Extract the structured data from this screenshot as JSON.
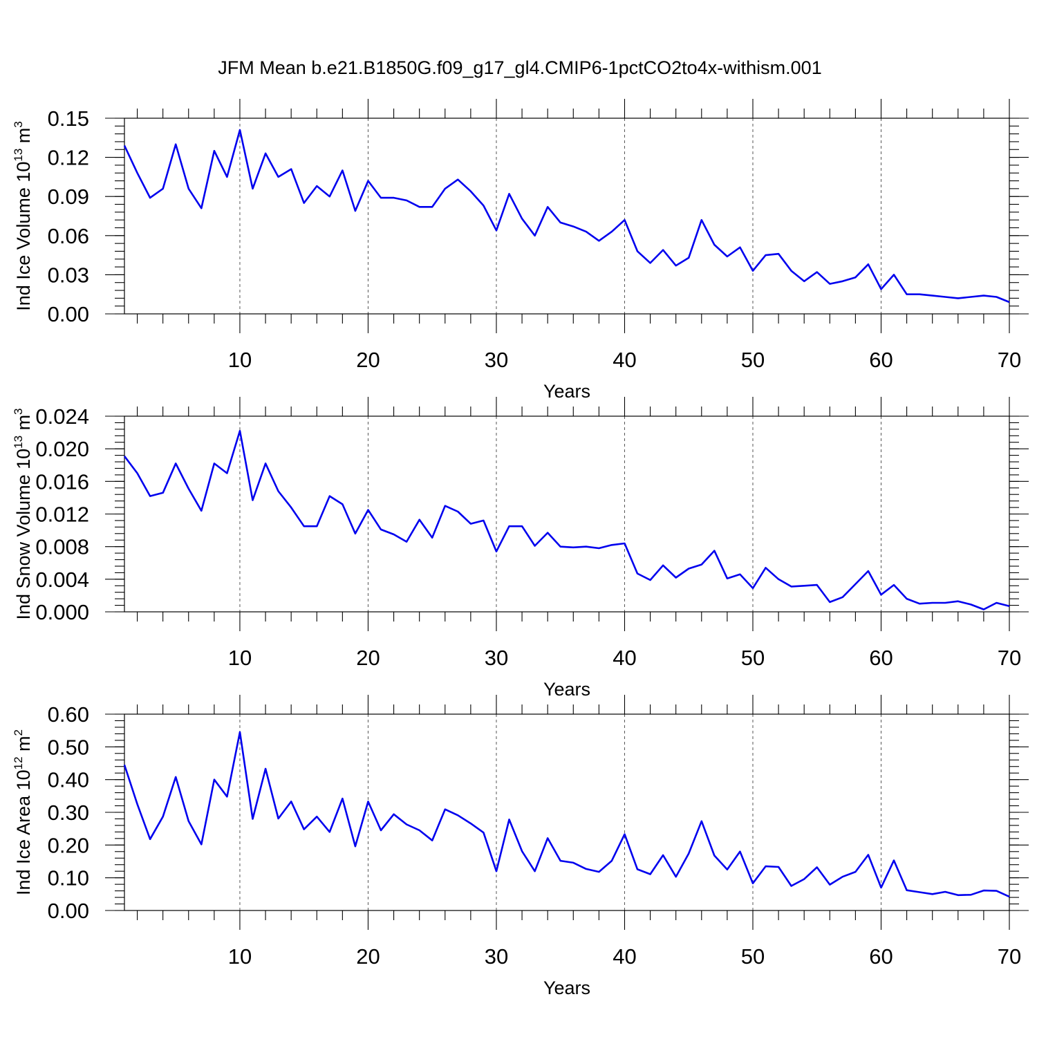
{
  "chart_data": [
    {
      "type": "line",
      "title": "JFM Mean b.e21.B1850G.f09_g17_gl4.CMIP6-1pctCO2to4x-withism.001",
      "ylabel": "Ind Ice Volume 10",
      "ylabel_exp": "13",
      "ylabel_unit": " m",
      "ylabel_unit_exp": "3",
      "xlabel": "Years",
      "xlim": [
        1,
        70
      ],
      "ylim": [
        0,
        0.15
      ],
      "xticks": [
        10,
        20,
        30,
        40,
        50,
        60,
        70
      ],
      "xtick_labels": [
        "10",
        "20",
        "30",
        "40",
        "50",
        "60",
        "70"
      ],
      "yticks": [
        0,
        0.03,
        0.06,
        0.09,
        0.12,
        0.15
      ],
      "ytick_labels": [
        "0.00",
        "0.03",
        "0.06",
        "0.09",
        "0.12",
        "0.15"
      ],
      "grid": "vertical dashed at major x ticks",
      "series": [
        {
          "name": "Ind Ice Volume",
          "color": "#0000ee",
          "x": [
            1,
            2,
            3,
            4,
            5,
            6,
            7,
            8,
            9,
            10,
            11,
            12,
            13,
            14,
            15,
            16,
            17,
            18,
            19,
            20,
            21,
            22,
            23,
            24,
            25,
            26,
            27,
            28,
            29,
            30,
            31,
            32,
            33,
            34,
            35,
            36,
            37,
            38,
            39,
            40,
            41,
            42,
            43,
            44,
            45,
            46,
            47,
            48,
            49,
            50,
            51,
            52,
            53,
            54,
            55,
            56,
            57,
            58,
            59,
            60,
            61,
            62,
            63,
            64,
            65,
            66,
            67,
            68,
            69,
            70
          ],
          "values": [
            0.129,
            0.108,
            0.089,
            0.096,
            0.13,
            0.096,
            0.081,
            0.125,
            0.105,
            0.141,
            0.096,
            0.123,
            0.105,
            0.111,
            0.085,
            0.098,
            0.09,
            0.11,
            0.079,
            0.102,
            0.089,
            0.089,
            0.087,
            0.082,
            0.082,
            0.096,
            0.103,
            0.094,
            0.083,
            0.064,
            0.092,
            0.073,
            0.06,
            0.082,
            0.07,
            0.067,
            0.063,
            0.056,
            0.063,
            0.072,
            0.048,
            0.039,
            0.049,
            0.037,
            0.043,
            0.072,
            0.053,
            0.044,
            0.051,
            0.033,
            0.045,
            0.046,
            0.033,
            0.025,
            0.032,
            0.023,
            0.025,
            0.028,
            0.038,
            0.019,
            0.03,
            0.015,
            0.015,
            0.014,
            0.013,
            0.012,
            0.013,
            0.014,
            0.013,
            0.009
          ]
        }
      ]
    },
    {
      "type": "line",
      "ylabel": "Ind Snow Volume 10",
      "ylabel_exp": "13",
      "ylabel_unit": " m",
      "ylabel_unit_exp": "3",
      "xlabel": "Years",
      "xlim": [
        1,
        70
      ],
      "ylim": [
        0,
        0.024
      ],
      "xticks": [
        10,
        20,
        30,
        40,
        50,
        60,
        70
      ],
      "xtick_labels": [
        "10",
        "20",
        "30",
        "40",
        "50",
        "60",
        "70"
      ],
      "yticks": [
        0,
        0.004,
        0.008,
        0.012,
        0.016,
        0.02,
        0.024
      ],
      "ytick_labels": [
        "0.000",
        "0.004",
        "0.008",
        "0.012",
        "0.016",
        "0.020",
        "0.024"
      ],
      "grid": "vertical dashed at major x ticks",
      "series": [
        {
          "name": "Ind Snow Volume",
          "color": "#0000ee",
          "x": [
            1,
            2,
            3,
            4,
            5,
            6,
            7,
            8,
            9,
            10,
            11,
            12,
            13,
            14,
            15,
            16,
            17,
            18,
            19,
            20,
            21,
            22,
            23,
            24,
            25,
            26,
            27,
            28,
            29,
            30,
            31,
            32,
            33,
            34,
            35,
            36,
            37,
            38,
            39,
            40,
            41,
            42,
            43,
            44,
            45,
            46,
            47,
            48,
            49,
            50,
            51,
            52,
            53,
            54,
            55,
            56,
            57,
            58,
            59,
            60,
            61,
            62,
            63,
            64,
            65,
            66,
            67,
            68,
            69,
            70
          ],
          "values": [
            0.0191,
            0.017,
            0.0142,
            0.0146,
            0.0182,
            0.0151,
            0.0124,
            0.0182,
            0.017,
            0.0222,
            0.0137,
            0.0182,
            0.0148,
            0.0128,
            0.0105,
            0.0105,
            0.0142,
            0.0132,
            0.0096,
            0.0125,
            0.0101,
            0.0095,
            0.0086,
            0.0113,
            0.0091,
            0.013,
            0.0123,
            0.0108,
            0.0112,
            0.0074,
            0.0105,
            0.0105,
            0.0081,
            0.0097,
            0.008,
            0.0079,
            0.008,
            0.0078,
            0.0082,
            0.0084,
            0.0047,
            0.0039,
            0.0057,
            0.0042,
            0.0053,
            0.0058,
            0.0075,
            0.0041,
            0.0046,
            0.0029,
            0.0054,
            0.004,
            0.0031,
            0.0032,
            0.0033,
            0.0012,
            0.0018,
            0.0034,
            0.005,
            0.0021,
            0.0033,
            0.0016,
            0.001,
            0.0011,
            0.0011,
            0.0013,
            0.0009,
            0.0003,
            0.0011,
            0.0007
          ]
        }
      ]
    },
    {
      "type": "line",
      "ylabel": "Ind Ice Area 10",
      "ylabel_exp": "12",
      "ylabel_unit": " m",
      "ylabel_unit_exp": "2",
      "xlabel": "Years",
      "xlim": [
        1,
        70
      ],
      "ylim": [
        0,
        0.6
      ],
      "xticks": [
        10,
        20,
        30,
        40,
        50,
        60,
        70
      ],
      "xtick_labels": [
        "10",
        "20",
        "30",
        "40",
        "50",
        "60",
        "70"
      ],
      "yticks": [
        0,
        0.1,
        0.2,
        0.3,
        0.4,
        0.5,
        0.6
      ],
      "ytick_labels": [
        "0.00",
        "0.10",
        "0.20",
        "0.30",
        "0.40",
        "0.50",
        "0.60"
      ],
      "grid": "vertical dashed at major x ticks",
      "series": [
        {
          "name": "Ind Ice Area",
          "color": "#0000ee",
          "x": [
            1,
            2,
            3,
            4,
            5,
            6,
            7,
            8,
            9,
            10,
            11,
            12,
            13,
            14,
            15,
            16,
            17,
            18,
            19,
            20,
            21,
            22,
            23,
            24,
            25,
            26,
            27,
            28,
            29,
            30,
            31,
            32,
            33,
            34,
            35,
            36,
            37,
            38,
            39,
            40,
            41,
            42,
            43,
            44,
            45,
            46,
            47,
            48,
            49,
            50,
            51,
            52,
            53,
            54,
            55,
            56,
            57,
            58,
            59,
            60,
            61,
            62,
            63,
            64,
            65,
            66,
            67,
            68,
            69,
            70
          ],
          "values": [
            0.445,
            0.325,
            0.218,
            0.287,
            0.408,
            0.273,
            0.202,
            0.4,
            0.348,
            0.545,
            0.28,
            0.433,
            0.281,
            0.333,
            0.248,
            0.287,
            0.24,
            0.342,
            0.196,
            0.333,
            0.245,
            0.294,
            0.263,
            0.245,
            0.214,
            0.309,
            0.291,
            0.266,
            0.238,
            0.12,
            0.278,
            0.181,
            0.12,
            0.221,
            0.152,
            0.146,
            0.127,
            0.118,
            0.152,
            0.233,
            0.126,
            0.111,
            0.169,
            0.103,
            0.174,
            0.273,
            0.168,
            0.125,
            0.18,
            0.083,
            0.135,
            0.133,
            0.075,
            0.096,
            0.132,
            0.079,
            0.103,
            0.118,
            0.17,
            0.07,
            0.153,
            0.062,
            0.056,
            0.05,
            0.057,
            0.047,
            0.048,
            0.061,
            0.06,
            0.042
          ]
        }
      ]
    }
  ]
}
